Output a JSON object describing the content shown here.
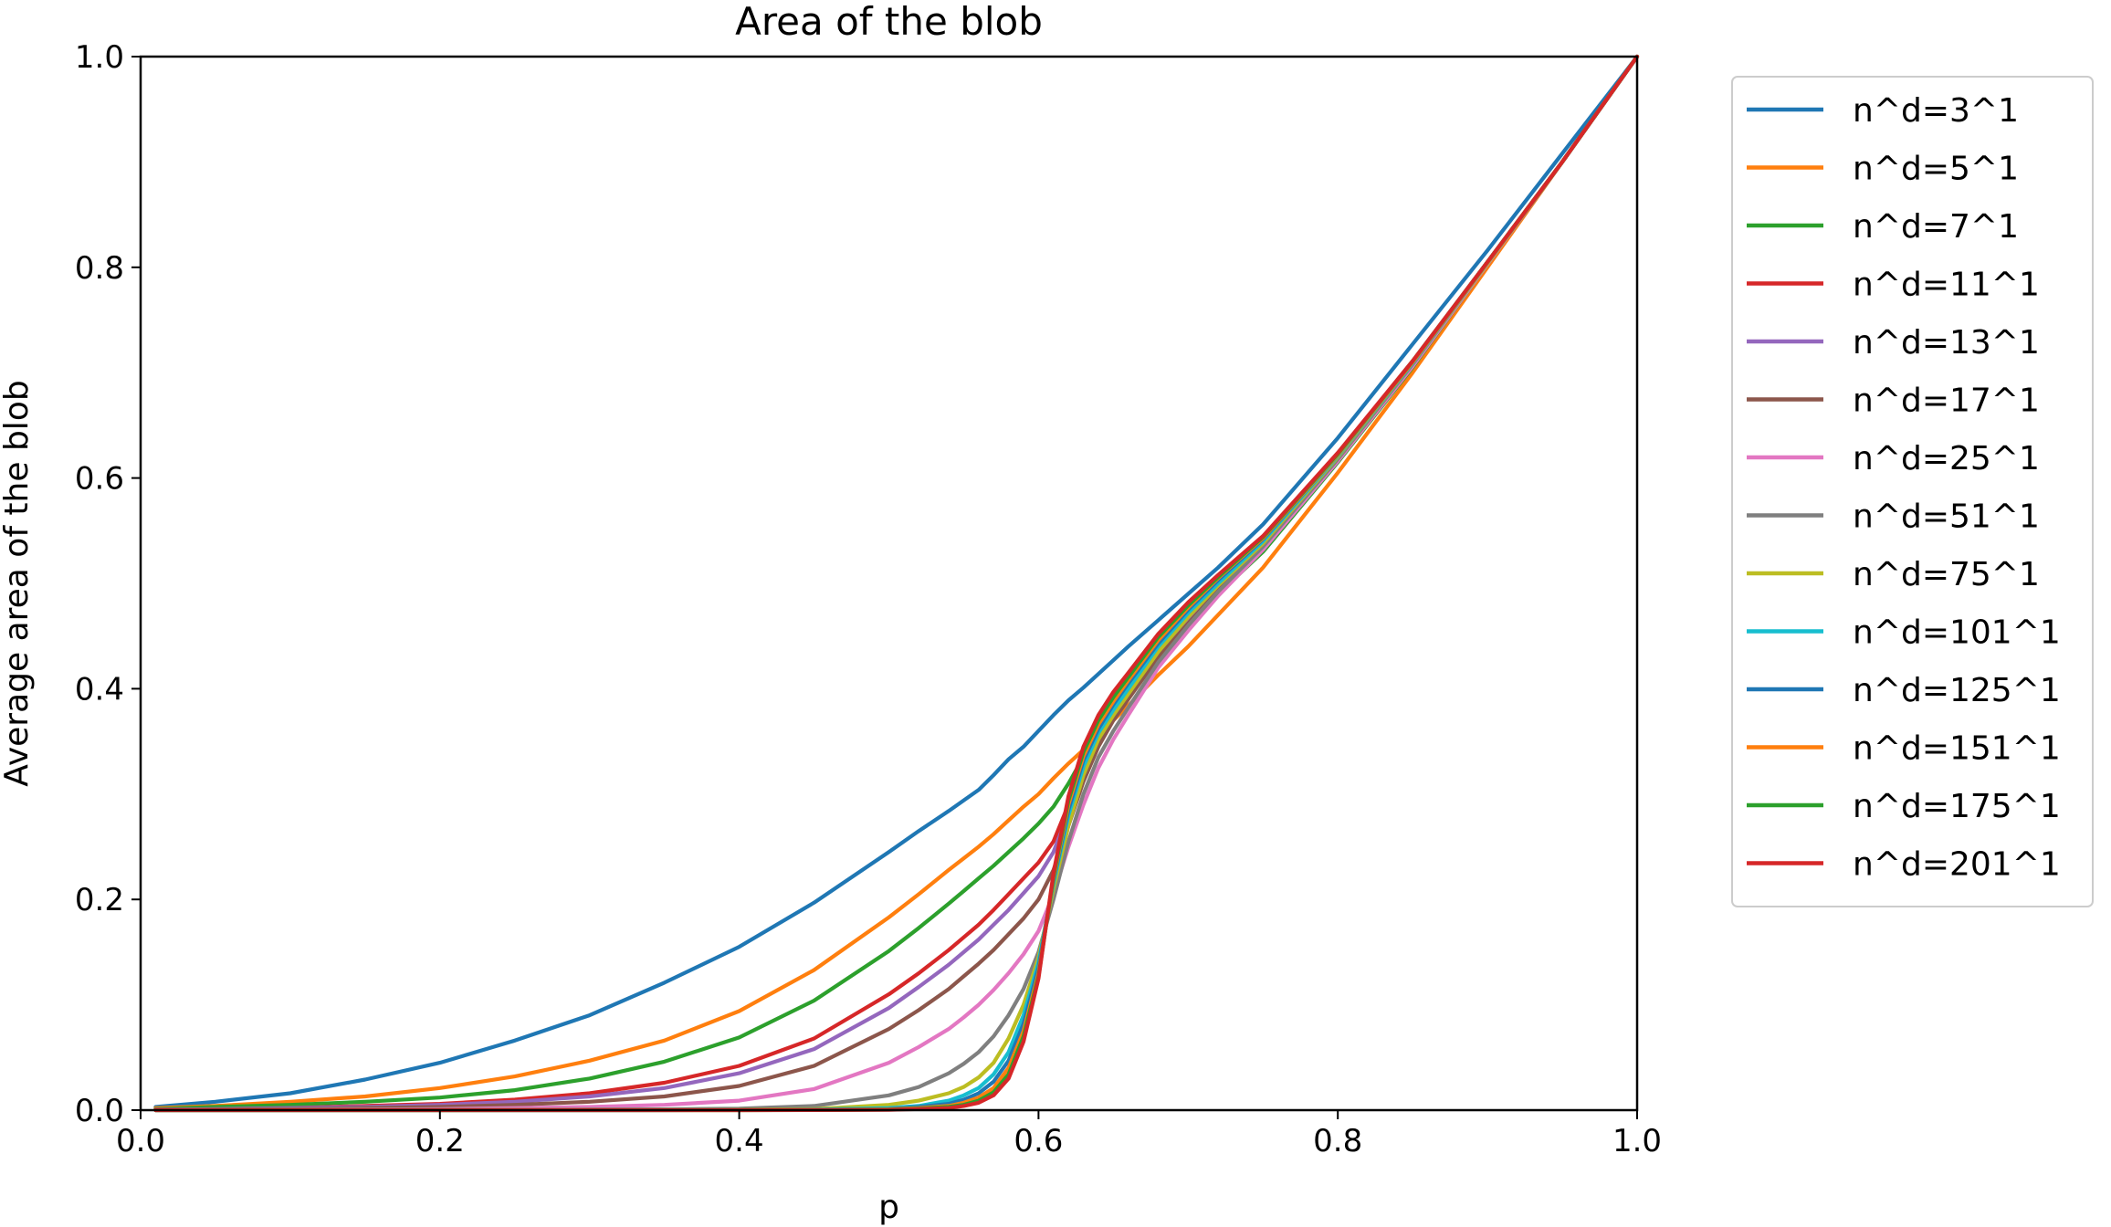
{
  "chart_data": {
    "type": "line",
    "title": "Area of the blob",
    "xlabel": "p",
    "ylabel": "Average area of the blob",
    "xlim": [
      0.0,
      1.0
    ],
    "ylim": [
      0.0,
      1.0
    ],
    "xticks": [
      "0.0",
      "0.2",
      "0.4",
      "0.6",
      "0.8",
      "1.0"
    ],
    "yticks": [
      "0.0",
      "0.2",
      "0.4",
      "0.6",
      "0.8",
      "1.0"
    ],
    "grid": false,
    "legend_position": "outside-right",
    "x": [
      0.01,
      0.05,
      0.1,
      0.15,
      0.2,
      0.25,
      0.3,
      0.35,
      0.4,
      0.45,
      0.5,
      0.52,
      0.54,
      0.55,
      0.56,
      0.57,
      0.58,
      0.59,
      0.6,
      0.61,
      0.62,
      0.63,
      0.64,
      0.65,
      0.66,
      0.68,
      0.7,
      0.72,
      0.75,
      0.8,
      0.85,
      0.9,
      0.95,
      1.0
    ],
    "series": [
      {
        "name": "n^d=3^1",
        "color": "#1f77b4",
        "values": [
          0.003,
          0.008,
          0.016,
          0.029,
          0.045,
          0.066,
          0.09,
          0.121,
          0.155,
          0.197,
          0.245,
          0.265,
          0.284,
          0.294,
          0.304,
          0.318,
          0.333,
          0.345,
          0.36,
          0.375,
          0.389,
          0.401,
          0.414,
          0.427,
          0.44,
          0.465,
          0.49,
          0.515,
          0.556,
          0.638,
          0.727,
          0.816,
          0.908,
          1.0
        ]
      },
      {
        "name": "n^d=5^1",
        "color": "#ff7f0e",
        "values": [
          0.002,
          0.004,
          0.008,
          0.013,
          0.021,
          0.032,
          0.047,
          0.066,
          0.094,
          0.133,
          0.183,
          0.205,
          0.228,
          0.239,
          0.25,
          0.262,
          0.275,
          0.288,
          0.3,
          0.315,
          0.329,
          0.342,
          0.356,
          0.37,
          0.384,
          0.413,
          0.44,
          0.47,
          0.515,
          0.605,
          0.7,
          0.8,
          0.9,
          1.0
        ]
      },
      {
        "name": "n^d=7^1",
        "color": "#2ca02c",
        "values": [
          0.001,
          0.003,
          0.005,
          0.008,
          0.012,
          0.019,
          0.03,
          0.046,
          0.069,
          0.104,
          0.151,
          0.173,
          0.196,
          0.208,
          0.22,
          0.232,
          0.245,
          0.258,
          0.272,
          0.288,
          0.31,
          0.335,
          0.36,
          0.38,
          0.398,
          0.43,
          0.46,
          0.49,
          0.53,
          0.615,
          0.705,
          0.803,
          0.9,
          1.0
        ]
      },
      {
        "name": "n^d=11^1",
        "color": "#d62728",
        "values": [
          0.0005,
          0.001,
          0.002,
          0.004,
          0.006,
          0.01,
          0.016,
          0.026,
          0.042,
          0.068,
          0.11,
          0.13,
          0.152,
          0.164,
          0.176,
          0.19,
          0.205,
          0.22,
          0.235,
          0.255,
          0.29,
          0.33,
          0.36,
          0.382,
          0.402,
          0.44,
          0.47,
          0.5,
          0.54,
          0.62,
          0.71,
          0.805,
          0.9,
          1.0
        ]
      },
      {
        "name": "n^d=13^1",
        "color": "#9467bd",
        "values": [
          0.0004,
          0.001,
          0.002,
          0.003,
          0.005,
          0.008,
          0.013,
          0.021,
          0.035,
          0.058,
          0.097,
          0.117,
          0.138,
          0.15,
          0.162,
          0.176,
          0.19,
          0.206,
          0.222,
          0.245,
          0.282,
          0.322,
          0.355,
          0.378,
          0.398,
          0.435,
          0.465,
          0.495,
          0.537,
          0.618,
          0.708,
          0.804,
          0.9,
          1.0
        ]
      },
      {
        "name": "n^d=17^1",
        "color": "#8c564b",
        "values": [
          0.0003,
          0.0006,
          0.001,
          0.002,
          0.003,
          0.005,
          0.008,
          0.013,
          0.023,
          0.042,
          0.077,
          0.095,
          0.115,
          0.127,
          0.139,
          0.152,
          0.167,
          0.182,
          0.2,
          0.228,
          0.27,
          0.312,
          0.345,
          0.37,
          0.39,
          0.43,
          0.462,
          0.493,
          0.535,
          0.617,
          0.707,
          0.803,
          0.9,
          1.0
        ]
      },
      {
        "name": "n^d=25^1",
        "color": "#e377c2",
        "values": [
          0.0001,
          0.0002,
          0.0004,
          0.0007,
          0.001,
          0.002,
          0.003,
          0.005,
          0.009,
          0.02,
          0.045,
          0.06,
          0.077,
          0.088,
          0.1,
          0.114,
          0.13,
          0.148,
          0.17,
          0.205,
          0.25,
          0.29,
          0.325,
          0.352,
          0.375,
          0.42,
          0.455,
          0.488,
          0.532,
          0.616,
          0.706,
          0.803,
          0.9,
          1.0
        ]
      },
      {
        "name": "n^d=51^1",
        "color": "#7f7f7f",
        "values": [
          0.0,
          0.0,
          0.0,
          0.0001,
          0.0002,
          0.0003,
          0.0005,
          0.0008,
          0.0015,
          0.004,
          0.014,
          0.022,
          0.035,
          0.044,
          0.055,
          0.07,
          0.09,
          0.115,
          0.15,
          0.2,
          0.255,
          0.3,
          0.335,
          0.36,
          0.382,
          0.425,
          0.46,
          0.492,
          0.535,
          0.618,
          0.708,
          0.804,
          0.9,
          1.0
        ]
      },
      {
        "name": "n^d=75^1",
        "color": "#bcbd22",
        "values": [
          0.0,
          0.0,
          0.0,
          0.0,
          0.0,
          0.0001,
          0.0001,
          0.0002,
          0.0004,
          0.001,
          0.005,
          0.009,
          0.016,
          0.022,
          0.031,
          0.045,
          0.068,
          0.1,
          0.145,
          0.21,
          0.27,
          0.318,
          0.352,
          0.375,
          0.395,
          0.435,
          0.468,
          0.498,
          0.538,
          0.62,
          0.709,
          0.804,
          0.9,
          1.0
        ]
      },
      {
        "name": "n^d=101^1",
        "color": "#17becf",
        "values": [
          0.0,
          0.0,
          0.0,
          0.0,
          0.0,
          0.0,
          0.0,
          0.0001,
          0.0002,
          0.0005,
          0.002,
          0.004,
          0.009,
          0.014,
          0.021,
          0.034,
          0.055,
          0.09,
          0.14,
          0.215,
          0.28,
          0.326,
          0.358,
          0.38,
          0.4,
          0.44,
          0.472,
          0.5,
          0.54,
          0.621,
          0.709,
          0.805,
          0.9,
          1.0
        ]
      },
      {
        "name": "n^d=125^1",
        "color": "#1f77b4",
        "values": [
          0.0,
          0.0,
          0.0,
          0.0,
          0.0,
          0.0,
          0.0,
          0.0,
          0.0001,
          0.0003,
          0.001,
          0.003,
          0.006,
          0.01,
          0.016,
          0.027,
          0.047,
          0.082,
          0.135,
          0.218,
          0.285,
          0.332,
          0.362,
          0.385,
          0.405,
          0.443,
          0.475,
          0.503,
          0.542,
          0.622,
          0.71,
          0.805,
          0.9,
          1.0
        ]
      },
      {
        "name": "n^d=151^1",
        "color": "#ff7f0e",
        "values": [
          0.0,
          0.0,
          0.0,
          0.0,
          0.0,
          0.0,
          0.0,
          0.0,
          0.0,
          0.0002,
          0.0008,
          0.002,
          0.004,
          0.007,
          0.012,
          0.021,
          0.04,
          0.075,
          0.13,
          0.22,
          0.29,
          0.336,
          0.366,
          0.388,
          0.408,
          0.446,
          0.477,
          0.505,
          0.543,
          0.622,
          0.71,
          0.805,
          0.9,
          1.0
        ]
      },
      {
        "name": "n^d=175^1",
        "color": "#2ca02c",
        "values": [
          0.0,
          0.0,
          0.0,
          0.0,
          0.0,
          0.0,
          0.0,
          0.0,
          0.0,
          0.0001,
          0.0005,
          0.0015,
          0.003,
          0.005,
          0.009,
          0.017,
          0.034,
          0.07,
          0.127,
          0.222,
          0.294,
          0.34,
          0.37,
          0.392,
          0.411,
          0.449,
          0.479,
          0.506,
          0.544,
          0.623,
          0.711,
          0.805,
          0.9,
          1.0
        ]
      },
      {
        "name": "n^d=201^1",
        "color": "#d62728",
        "values": [
          0.0,
          0.0,
          0.0,
          0.0,
          0.0,
          0.0,
          0.0,
          0.0,
          0.0,
          0.0001,
          0.0003,
          0.001,
          0.002,
          0.004,
          0.007,
          0.014,
          0.03,
          0.065,
          0.125,
          0.225,
          0.298,
          0.345,
          0.375,
          0.397,
          0.415,
          0.452,
          0.482,
          0.508,
          0.545,
          0.624,
          0.711,
          0.805,
          0.9,
          1.0
        ]
      }
    ]
  }
}
